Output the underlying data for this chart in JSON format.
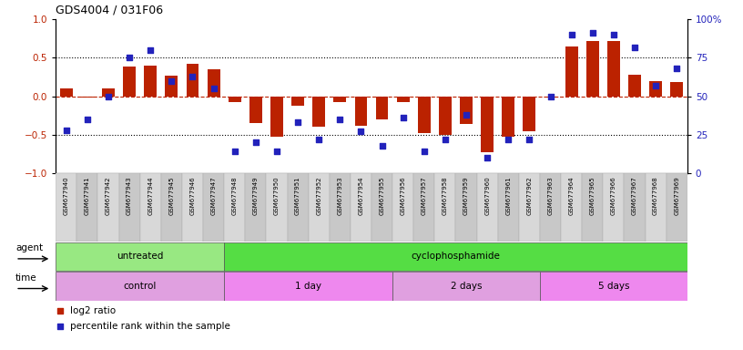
{
  "title": "GDS4004 / 031F06",
  "samples": [
    "GSM677940",
    "GSM677941",
    "GSM677942",
    "GSM677943",
    "GSM677944",
    "GSM677945",
    "GSM677946",
    "GSM677947",
    "GSM677948",
    "GSM677949",
    "GSM677950",
    "GSM677951",
    "GSM677952",
    "GSM677953",
    "GSM677954",
    "GSM677955",
    "GSM677956",
    "GSM677957",
    "GSM677958",
    "GSM677959",
    "GSM677960",
    "GSM677961",
    "GSM677962",
    "GSM677963",
    "GSM677964",
    "GSM677965",
    "GSM677966",
    "GSM677967",
    "GSM677968",
    "GSM677969"
  ],
  "log2_ratio": [
    0.1,
    -0.02,
    0.1,
    0.38,
    0.4,
    0.27,
    0.42,
    0.35,
    -0.08,
    -0.35,
    -0.53,
    -0.12,
    -0.4,
    -0.07,
    -0.38,
    -0.3,
    -0.07,
    -0.48,
    -0.5,
    -0.36,
    -0.73,
    -0.53,
    -0.46,
    -0.02,
    0.65,
    0.72,
    0.72,
    0.28,
    0.2,
    0.18
  ],
  "percentile": [
    28,
    35,
    50,
    75,
    80,
    60,
    63,
    55,
    14,
    20,
    14,
    33,
    22,
    35,
    27,
    18,
    36,
    14,
    22,
    38,
    10,
    22,
    22,
    50,
    90,
    91,
    90,
    82,
    57,
    68
  ],
  "agent_groups": [
    {
      "label": "untreated",
      "start": 0,
      "end": 7,
      "color": "#98e882"
    },
    {
      "label": "cyclophosphamide",
      "start": 8,
      "end": 29,
      "color": "#55dd44"
    }
  ],
  "time_groups": [
    {
      "label": "control",
      "start": 0,
      "end": 7,
      "color": "#e0a0e0"
    },
    {
      "label": "1 day",
      "start": 8,
      "end": 15,
      "color": "#ee88ee"
    },
    {
      "label": "2 days",
      "start": 16,
      "end": 22,
      "color": "#e0a0e0"
    },
    {
      "label": "5 days",
      "start": 23,
      "end": 29,
      "color": "#ee88ee"
    }
  ],
  "bar_color": "#bb2200",
  "dot_color": "#2222bb",
  "ylim_left": [
    -1,
    1
  ],
  "ylim_right": [
    0,
    100
  ],
  "yticks_left": [
    -1,
    -0.5,
    0,
    0.5,
    1
  ],
  "yticks_right": [
    0,
    25,
    50,
    75,
    100
  ],
  "ytick_labels_right": [
    "0",
    "25",
    "50",
    "75",
    "100%"
  ],
  "hlines_black": [
    0.5,
    -0.5
  ],
  "hline_red": 0,
  "legend_red": "log2 ratio",
  "legend_blue": "percentile rank within the sample",
  "agent_label": "agent",
  "time_label": "time"
}
